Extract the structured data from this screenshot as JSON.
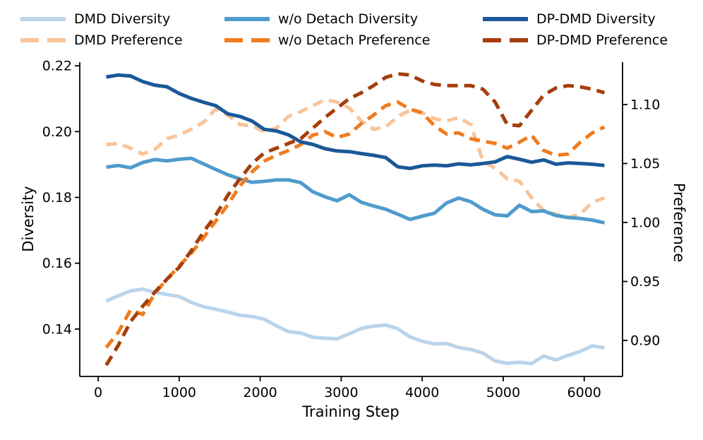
{
  "figure": {
    "background": "#ffffff",
    "text_color": "#000000",
    "spine_color": "#000000"
  },
  "legend": {
    "items": [
      {
        "label": "DMD Diversity",
        "color": "#bad4ea",
        "dash": "solid"
      },
      {
        "label": "w/o Detach Diversity",
        "color": "#4f9bcd",
        "dash": "solid"
      },
      {
        "label": "DP-DMD Diversity",
        "color": "#1b5899",
        "dash": "solid"
      },
      {
        "label": "DMD Preference",
        "color": "#f9c499",
        "dash": "dashed"
      },
      {
        "label": "w/o Detach Preference",
        "color": "#f07c1f",
        "dash": "dashed"
      },
      {
        "label": "DP-DMD Preference",
        "color": "#a63e0c",
        "dash": "dashed"
      }
    ]
  },
  "axes": {
    "x": {
      "label": "Training Step",
      "ticks": [
        0,
        1000,
        2000,
        3000,
        4000,
        5000,
        6000
      ],
      "range": [
        -227,
        6473
      ]
    },
    "y_left": {
      "label": "Diversity",
      "ticks": [
        0.14,
        0.16,
        0.18,
        0.2,
        0.22
      ],
      "range": [
        0.1256,
        0.2211
      ]
    },
    "y_right": {
      "label": "Preference",
      "ticks": [
        0.9,
        0.95,
        1.0,
        1.05,
        1.1
      ],
      "range": [
        0.8695,
        1.1359
      ]
    }
  },
  "chart_data": {
    "type": "line",
    "xlabel": "Training Step",
    "ylabel_left": "Diversity",
    "ylabel_right": "Preference",
    "grid": false,
    "legend_position": "top",
    "x": [
      100,
      250,
      400,
      550,
      700,
      850,
      1000,
      1150,
      1300,
      1450,
      1600,
      1750,
      1900,
      2050,
      2200,
      2350,
      2500,
      2650,
      2800,
      2950,
      3100,
      3250,
      3400,
      3550,
      3700,
      3850,
      4000,
      4150,
      4300,
      4450,
      4600,
      4750,
      4900,
      5050,
      5200,
      5350,
      5500,
      5650,
      5800,
      5950,
      6100,
      6250
    ],
    "series": [
      {
        "name": "DMD Diversity",
        "axis": "left",
        "style": "solid",
        "color": "#bad4ea",
        "values": [
          0.1485,
          0.1501,
          0.1516,
          0.1521,
          0.1512,
          0.1505,
          0.1499,
          0.1481,
          0.1468,
          0.146,
          0.1452,
          0.1442,
          0.1438,
          0.143,
          0.141,
          0.1392,
          0.1388,
          0.1375,
          0.1372,
          0.137,
          0.1386,
          0.1402,
          0.1409,
          0.1412,
          0.1401,
          0.1376,
          0.1363,
          0.1355,
          0.1356,
          0.1344,
          0.1338,
          0.1327,
          0.1303,
          0.1296,
          0.1299,
          0.1295,
          0.1318,
          0.1306,
          0.132,
          0.1332,
          0.1349,
          0.1343
        ]
      },
      {
        "name": "DMD Preference",
        "axis": "right",
        "style": "dashed",
        "color": "#f9c499",
        "values": [
          1.066,
          1.067,
          1.063,
          1.058,
          1.062,
          1.071,
          1.074,
          1.079,
          1.085,
          1.096,
          1.091,
          1.083,
          1.082,
          1.077,
          1.08,
          1.09,
          1.094,
          1.099,
          1.104,
          1.102,
          1.097,
          1.086,
          1.079,
          1.081,
          1.09,
          1.095,
          1.093,
          1.088,
          1.086,
          1.089,
          1.083,
          1.052,
          1.046,
          1.037,
          1.035,
          1.021,
          1.01,
          1.007,
          1.004,
          1.007,
          1.017,
          1.021
        ]
      },
      {
        "name": "w/o Detach Diversity",
        "axis": "left",
        "style": "solid",
        "color": "#4f9bcd",
        "values": [
          0.1892,
          0.1897,
          0.189,
          0.1906,
          0.1915,
          0.1911,
          0.1916,
          0.1919,
          0.1902,
          0.1885,
          0.1869,
          0.1856,
          0.1846,
          0.1849,
          0.1853,
          0.1853,
          0.1845,
          0.1817,
          0.1802,
          0.179,
          0.1808,
          0.1785,
          0.1774,
          0.1764,
          0.1749,
          0.1733,
          0.1743,
          0.1752,
          0.1783,
          0.1798,
          0.1787,
          0.1764,
          0.1747,
          0.1744,
          0.1776,
          0.1757,
          0.1759,
          0.1745,
          0.1739,
          0.1736,
          0.1731,
          0.1723
        ]
      },
      {
        "name": "w/o Detach Preference",
        "axis": "right",
        "style": "dashed",
        "color": "#f07c1f",
        "values": [
          0.894,
          0.907,
          0.926,
          0.922,
          0.94,
          0.952,
          0.963,
          0.974,
          0.987,
          1.001,
          1.015,
          1.031,
          1.043,
          1.052,
          1.057,
          1.061,
          1.066,
          1.074,
          1.077,
          1.072,
          1.075,
          1.084,
          1.091,
          1.099,
          1.102,
          1.096,
          1.093,
          1.082,
          1.075,
          1.076,
          1.071,
          1.069,
          1.067,
          1.063,
          1.068,
          1.074,
          1.061,
          1.057,
          1.058,
          1.068,
          1.076,
          1.081
        ]
      },
      {
        "name": "DP-DMD Diversity",
        "axis": "left",
        "style": "solid",
        "color": "#1b5899",
        "values": [
          0.2166,
          0.2172,
          0.2169,
          0.2152,
          0.2141,
          0.2136,
          0.2116,
          0.2101,
          0.2089,
          0.2079,
          0.2054,
          0.2046,
          0.2032,
          0.2007,
          0.2002,
          0.199,
          0.1969,
          0.1961,
          0.1948,
          0.1941,
          0.1939,
          0.1933,
          0.1928,
          0.1921,
          0.1893,
          0.1888,
          0.1896,
          0.1898,
          0.1896,
          0.1902,
          0.1899,
          0.1903,
          0.1908,
          0.1924,
          0.1916,
          0.1907,
          0.1914,
          0.1901,
          0.1905,
          0.1903,
          0.1901,
          0.1897
        ]
      },
      {
        "name": "DP-DMD Preference",
        "axis": "right",
        "style": "dashed",
        "color": "#a63e0c",
        "values": [
          0.879,
          0.896,
          0.916,
          0.929,
          0.941,
          0.952,
          0.962,
          0.976,
          0.992,
          1.006,
          1.023,
          1.037,
          1.05,
          1.059,
          1.063,
          1.067,
          1.071,
          1.08,
          1.089,
          1.097,
          1.105,
          1.11,
          1.116,
          1.123,
          1.126,
          1.125,
          1.12,
          1.117,
          1.116,
          1.116,
          1.116,
          1.113,
          1.102,
          1.083,
          1.082,
          1.095,
          1.108,
          1.114,
          1.116,
          1.115,
          1.113,
          1.11
        ]
      }
    ]
  }
}
